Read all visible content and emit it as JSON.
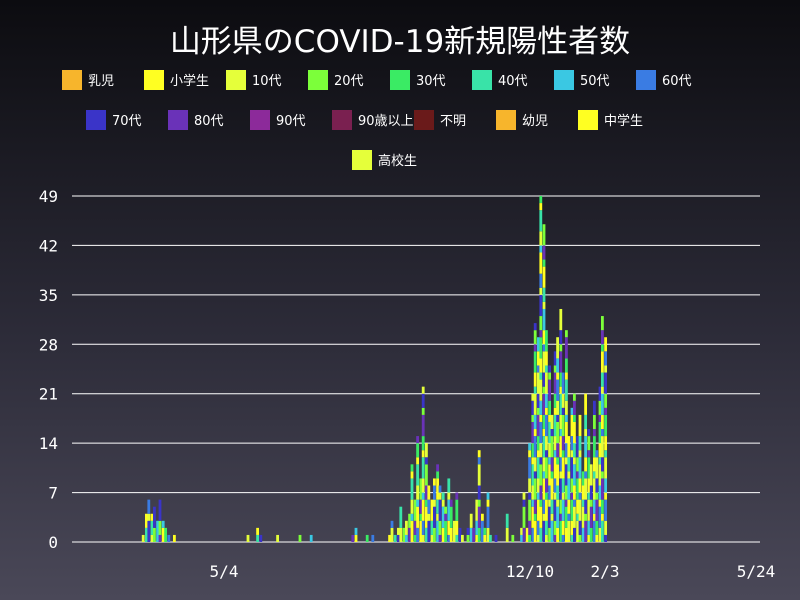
{
  "chart_data": {
    "type": "bar",
    "stacked": true,
    "title": "山形県のCOVID-19新規陽性者数",
    "xlabel": "",
    "ylabel": "",
    "ylim": [
      0,
      49
    ],
    "y_ticks": [
      "0",
      "7",
      "14",
      "21",
      "28",
      "35",
      "42",
      "49"
    ],
    "x_tick_labels": [
      "5/4",
      "12/10",
      "2/3",
      "5/24"
    ],
    "grid": "horizontal",
    "legend_position": "top",
    "age_groups": [
      "乳児",
      "小学生",
      "10代",
      "20代",
      "30代",
      "40代",
      "50代",
      "60代",
      "70代",
      "80代",
      "90代",
      "90歳以上",
      "不明",
      "幼児",
      "中学生",
      "高校生"
    ],
    "colors": [
      "#f7b52c",
      "#ffff22",
      "#e5ff3a",
      "#7cff3a",
      "#3aeb64",
      "#39e3a8",
      "#3ac8e3",
      "#3a7ce3",
      "#3a34c8",
      "#6a32b8",
      "#8c2a9a",
      "#7a2050",
      "#6a1a1a",
      "#f7b52c",
      "#ffff22",
      "#e5ff3a"
    ],
    "bars": [
      {
        "x": 0.179,
        "total": 1
      },
      {
        "x": 0.183,
        "total": 4
      },
      {
        "x": 0.186,
        "total": 6
      },
      {
        "x": 0.19,
        "total": 4
      },
      {
        "x": 0.193,
        "total": 5
      },
      {
        "x": 0.197,
        "total": 3
      },
      {
        "x": 0.2,
        "total": 6
      },
      {
        "x": 0.204,
        "total": 3
      },
      {
        "x": 0.207,
        "total": 2
      },
      {
        "x": 0.211,
        "total": 1
      },
      {
        "x": 0.218,
        "total": 1
      },
      {
        "x": 0.31,
        "total": 1
      },
      {
        "x": 0.322,
        "total": 2
      },
      {
        "x": 0.326,
        "total": 1
      },
      {
        "x": 0.347,
        "total": 1
      },
      {
        "x": 0.375,
        "total": 1
      },
      {
        "x": 0.389,
        "total": 1
      },
      {
        "x": 0.441,
        "total": 1
      },
      {
        "x": 0.445,
        "total": 2
      },
      {
        "x": 0.459,
        "total": 1
      },
      {
        "x": 0.466,
        "total": 1
      },
      {
        "x": 0.487,
        "total": 1
      },
      {
        "x": 0.49,
        "total": 3
      },
      {
        "x": 0.494,
        "total": 1
      },
      {
        "x": 0.498,
        "total": 2
      },
      {
        "x": 0.501,
        "total": 5
      },
      {
        "x": 0.505,
        "total": 2
      },
      {
        "x": 0.508,
        "total": 3
      },
      {
        "x": 0.512,
        "total": 4
      },
      {
        "x": 0.515,
        "total": 11
      },
      {
        "x": 0.519,
        "total": 6
      },
      {
        "x": 0.522,
        "total": 15
      },
      {
        "x": 0.526,
        "total": 9
      },
      {
        "x": 0.529,
        "total": 22
      },
      {
        "x": 0.533,
        "total": 14
      },
      {
        "x": 0.536,
        "total": 8
      },
      {
        "x": 0.54,
        "total": 6
      },
      {
        "x": 0.543,
        "total": 9
      },
      {
        "x": 0.547,
        "total": 11
      },
      {
        "x": 0.55,
        "total": 8
      },
      {
        "x": 0.554,
        "total": 7
      },
      {
        "x": 0.557,
        "total": 5
      },
      {
        "x": 0.561,
        "total": 9
      },
      {
        "x": 0.564,
        "total": 6
      },
      {
        "x": 0.568,
        "total": 3
      },
      {
        "x": 0.571,
        "total": 7
      },
      {
        "x": 0.575,
        "total": 2
      },
      {
        "x": 0.578,
        "total": 1
      },
      {
        "x": 0.585,
        "total": 2
      },
      {
        "x": 0.589,
        "total": 4
      },
      {
        "x": 0.592,
        "total": 2
      },
      {
        "x": 0.596,
        "total": 6
      },
      {
        "x": 0.599,
        "total": 13
      },
      {
        "x": 0.603,
        "total": 4
      },
      {
        "x": 0.606,
        "total": 2
      },
      {
        "x": 0.61,
        "total": 7
      },
      {
        "x": 0.613,
        "total": 1
      },
      {
        "x": 0.62,
        "total": 1
      },
      {
        "x": 0.634,
        "total": 4
      },
      {
        "x": 0.641,
        "total": 1
      },
      {
        "x": 0.652,
        "total": 2
      },
      {
        "x": 0.655,
        "total": 7
      },
      {
        "x": 0.659,
        "total": 2
      },
      {
        "x": 0.662,
        "total": 14
      },
      {
        "x": 0.666,
        "total": 21
      },
      {
        "x": 0.669,
        "total": 31
      },
      {
        "x": 0.673,
        "total": 29
      },
      {
        "x": 0.676,
        "total": 49
      },
      {
        "x": 0.68,
        "total": 45
      },
      {
        "x": 0.683,
        "total": 30
      },
      {
        "x": 0.687,
        "total": 25
      },
      {
        "x": 0.69,
        "total": 18
      },
      {
        "x": 0.694,
        "total": 27
      },
      {
        "x": 0.697,
        "total": 29
      },
      {
        "x": 0.701,
        "total": 33
      },
      {
        "x": 0.704,
        "total": 24
      },
      {
        "x": 0.708,
        "total": 30
      },
      {
        "x": 0.711,
        "total": 15
      },
      {
        "x": 0.715,
        "total": 19
      },
      {
        "x": 0.718,
        "total": 21
      },
      {
        "x": 0.722,
        "total": 15
      },
      {
        "x": 0.725,
        "total": 18
      },
      {
        "x": 0.729,
        "total": 10
      },
      {
        "x": 0.732,
        "total": 21
      },
      {
        "x": 0.736,
        "total": 16
      },
      {
        "x": 0.739,
        "total": 11
      },
      {
        "x": 0.743,
        "total": 20
      },
      {
        "x": 0.746,
        "total": 13
      },
      {
        "x": 0.75,
        "total": 22
      },
      {
        "x": 0.753,
        "total": 32
      },
      {
        "x": 0.757,
        "total": 29
      }
    ]
  }
}
